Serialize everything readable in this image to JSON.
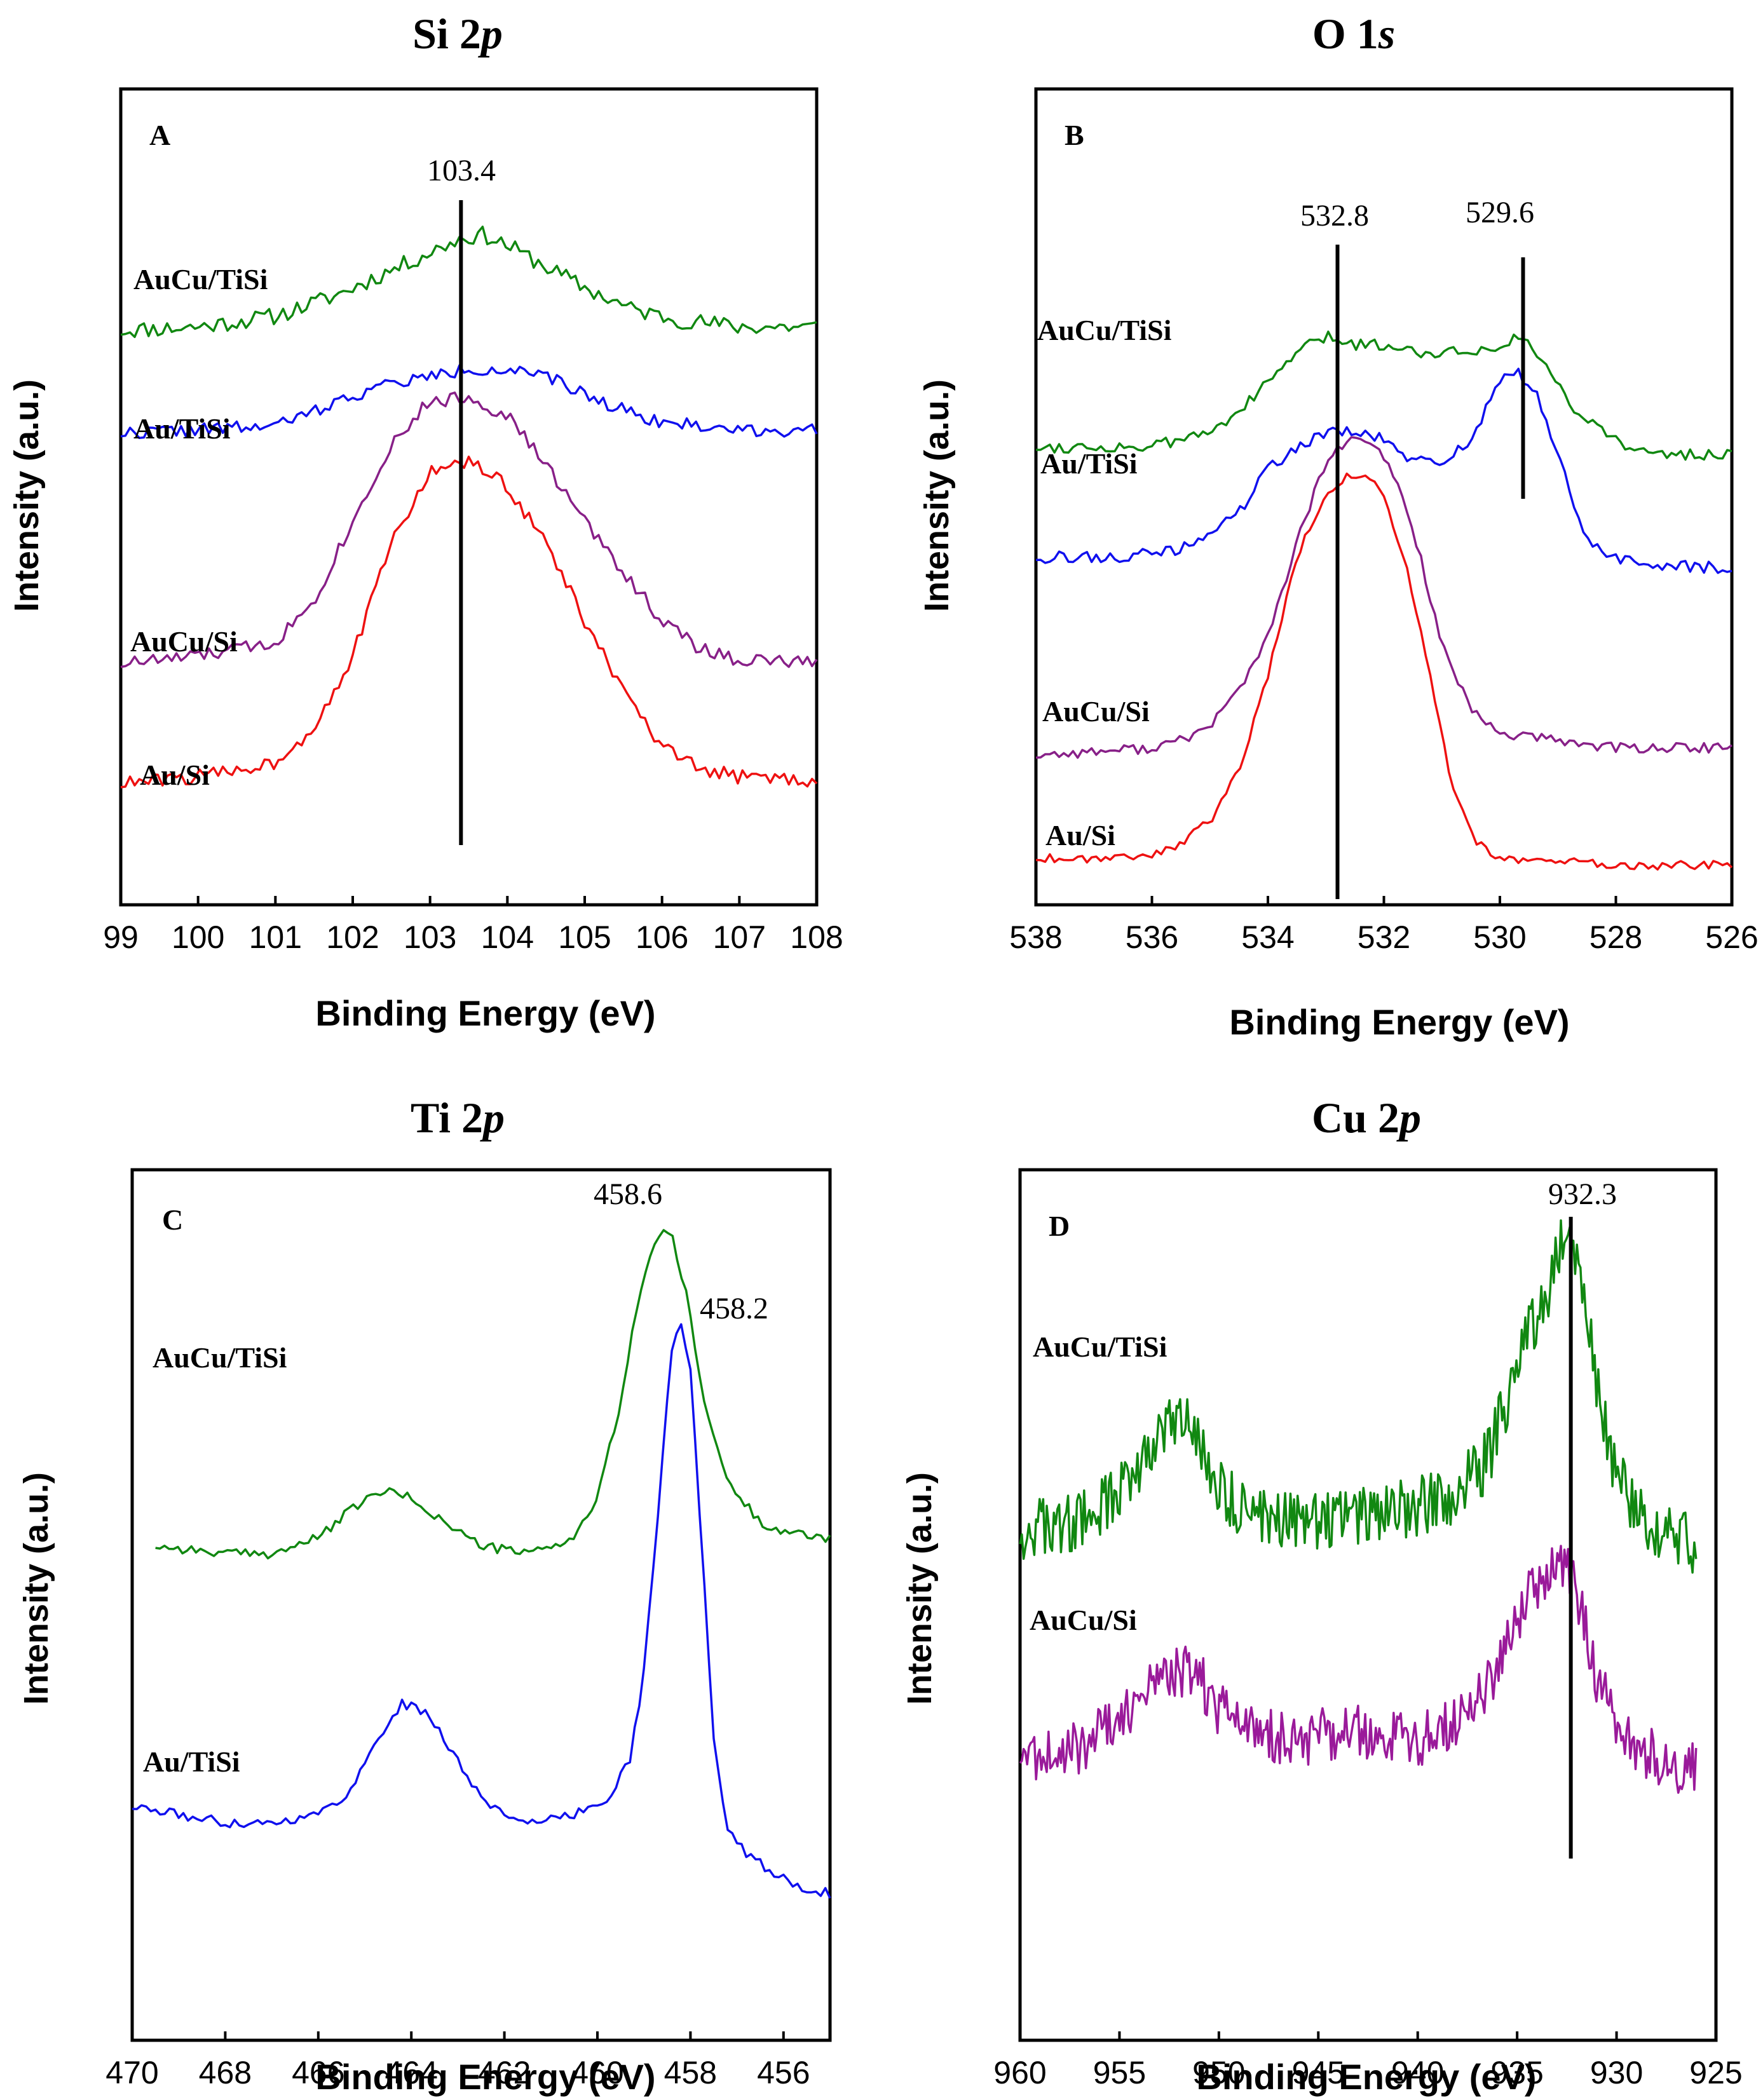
{
  "chart_data": [
    {
      "type": "line",
      "panel": "A",
      "title": "Si 2p",
      "title_main": "Si 2",
      "title_italic": "p",
      "xlabel": "Binding Energy (eV)",
      "ylabel": "Intensity (a.u.)",
      "xlim": [
        99,
        108
      ],
      "ylim": [
        0,
        1
      ],
      "xticks": [
        99,
        100,
        101,
        102,
        103,
        104,
        105,
        106,
        107,
        108
      ],
      "annotations": [
        {
          "x": 103.4,
          "label": "103.4"
        }
      ],
      "series": [
        {
          "name": "AuCu/TiSi",
          "color": "#118811",
          "noise": 0.012,
          "seed": 11,
          "x": [
            99,
            100,
            101,
            101.8,
            102.5,
            103,
            103.4,
            103.7,
            104,
            104.5,
            105,
            105.6,
            106.2,
            107,
            108
          ],
          "y": [
            0.74,
            0.745,
            0.76,
            0.79,
            0.825,
            0.85,
            0.87,
            0.875,
            0.86,
            0.83,
            0.8,
            0.77,
            0.755,
            0.745,
            0.745
          ]
        },
        {
          "name": "Au/TiSi",
          "color": "#1010ee",
          "noise": 0.009,
          "seed": 22,
          "x": [
            99,
            100,
            101,
            101.6,
            102.3,
            103,
            103.5,
            104,
            104.6,
            105.2,
            106,
            107,
            108
          ],
          "y": [
            0.595,
            0.6,
            0.605,
            0.63,
            0.66,
            0.675,
            0.685,
            0.685,
            0.67,
            0.64,
            0.61,
            0.6,
            0.598
          ]
        },
        {
          "name": "AuCu/Si",
          "color": "#882088",
          "noise": 0.01,
          "seed": 33,
          "x": [
            99,
            100,
            101,
            101.5,
            102,
            102.5,
            103,
            103.5,
            104,
            104.5,
            105,
            105.5,
            106,
            106.5,
            107,
            108
          ],
          "y": [
            0.27,
            0.28,
            0.3,
            0.36,
            0.47,
            0.58,
            0.64,
            0.645,
            0.62,
            0.55,
            0.47,
            0.4,
            0.33,
            0.29,
            0.275,
            0.27
          ]
        },
        {
          "name": "Au/Si",
          "color": "#ee1111",
          "noise": 0.01,
          "seed": 44,
          "x": [
            99,
            100,
            101,
            101.5,
            102,
            102.5,
            103,
            103.5,
            104,
            104.5,
            105,
            105.5,
            106,
            106.5,
            107,
            108
          ],
          "y": [
            0.1,
            0.11,
            0.13,
            0.18,
            0.28,
            0.44,
            0.54,
            0.555,
            0.52,
            0.44,
            0.33,
            0.23,
            0.15,
            0.12,
            0.11,
            0.105
          ]
        }
      ],
      "series_labels": [
        "AuCu/TiSi",
        "Au/TiSi",
        "AuCu/Si",
        "Au/Si"
      ]
    },
    {
      "type": "line",
      "panel": "B",
      "title": "O 1s",
      "title_main": "O 1",
      "title_italic": "s",
      "xlabel": "Binding Energy (eV)",
      "ylabel": "Intensity (a.u.)",
      "xlim": [
        538,
        526
      ],
      "ylim": [
        0,
        1
      ],
      "xticks": [
        538,
        536,
        534,
        532,
        530,
        528,
        526
      ],
      "annotations": [
        {
          "x": 532.8,
          "label": "532.8"
        },
        {
          "x": 529.6,
          "label": "529.6"
        }
      ],
      "series": [
        {
          "name": "AuCu/TiSi",
          "color": "#118811",
          "noise": 0.008,
          "seed": 55,
          "x": [
            538,
            536,
            535,
            534.2,
            533.5,
            533,
            532.5,
            532,
            531.5,
            531,
            530.5,
            530,
            529.6,
            529.2,
            528.8,
            528.2,
            527.5,
            526
          ],
          "y": [
            0.59,
            0.59,
            0.61,
            0.66,
            0.72,
            0.74,
            0.73,
            0.73,
            0.72,
            0.72,
            0.72,
            0.73,
            0.74,
            0.7,
            0.65,
            0.61,
            0.58,
            0.58
          ]
        },
        {
          "name": "Au/TiSi",
          "color": "#1010ee",
          "noise": 0.008,
          "seed": 66,
          "x": [
            538,
            536.5,
            535.5,
            534.5,
            534,
            533.5,
            533,
            532.5,
            532,
            531.5,
            531,
            530.5,
            530,
            529.7,
            529.4,
            529,
            528.6,
            528.2,
            527.5,
            526
          ],
          "y": [
            0.44,
            0.44,
            0.45,
            0.5,
            0.56,
            0.59,
            0.61,
            0.61,
            0.6,
            0.57,
            0.57,
            0.6,
            0.68,
            0.69,
            0.67,
            0.58,
            0.48,
            0.44,
            0.43,
            0.425
          ]
        },
        {
          "name": "AuCu/Si",
          "color": "#882088",
          "noise": 0.007,
          "seed": 77,
          "x": [
            538,
            537,
            536,
            535.5,
            535,
            534.5,
            534,
            533.5,
            533,
            532.6,
            532.2,
            531.8,
            531.4,
            531,
            530.5,
            530,
            529,
            528,
            526
          ],
          "y": [
            0.17,
            0.175,
            0.18,
            0.19,
            0.21,
            0.26,
            0.33,
            0.46,
            0.57,
            0.6,
            0.595,
            0.55,
            0.45,
            0.32,
            0.23,
            0.2,
            0.19,
            0.18,
            0.18
          ]
        },
        {
          "name": "Au/Si",
          "color": "#ee1111",
          "noise": 0.006,
          "seed": 88,
          "x": [
            538,
            537,
            536,
            535.5,
            535,
            534.5,
            534,
            533.5,
            533,
            532.6,
            532.3,
            532,
            531.6,
            531.2,
            530.8,
            530.4,
            530,
            529,
            528,
            526
          ],
          "y": [
            0.03,
            0.03,
            0.035,
            0.05,
            0.08,
            0.15,
            0.28,
            0.44,
            0.53,
            0.55,
            0.555,
            0.52,
            0.42,
            0.28,
            0.12,
            0.05,
            0.03,
            0.025,
            0.02,
            0.02
          ]
        }
      ],
      "series_labels": [
        "AuCu/TiSi",
        "Au/TiSi",
        "AuCu/Si",
        "Au/Si"
      ]
    },
    {
      "type": "line",
      "panel": "C",
      "title": "Ti 2p",
      "title_main": "Ti 2",
      "title_italic": "p",
      "xlabel": "Binding Energy (eV)",
      "ylabel": "Intensity (a.u.)",
      "xlim": [
        470,
        455
      ],
      "ylim": [
        0,
        1
      ],
      "xticks": [
        470,
        468,
        466,
        464,
        462,
        460,
        458,
        456
      ],
      "annotations": [
        {
          "x": 458.6,
          "label": "458.6"
        },
        {
          "x": 458.2,
          "label": "458.2"
        }
      ],
      "series": [
        {
          "name": "AuCu/TiSi",
          "color": "#118811",
          "noise": 0.006,
          "seed": 99,
          "x": [
            469.5,
            468,
            467,
            466,
            465.2,
            464.6,
            464,
            463.3,
            462.5,
            461.5,
            460.5,
            460,
            459.5,
            459.1,
            458.8,
            458.6,
            458.4,
            458.1,
            457.7,
            457.2,
            456.5,
            455.8,
            455
          ],
          "y": [
            0.54,
            0.53,
            0.53,
            0.55,
            0.59,
            0.61,
            0.6,
            0.57,
            0.54,
            0.53,
            0.55,
            0.6,
            0.72,
            0.86,
            0.92,
            0.94,
            0.93,
            0.86,
            0.72,
            0.62,
            0.57,
            0.555,
            0.55
          ]
        },
        {
          "name": "Au/TiSi",
          "color": "#1010ee",
          "noise": 0.006,
          "seed": 111,
          "x": [
            470,
            469,
            468,
            467,
            466,
            465.3,
            464.7,
            464.2,
            463.7,
            463,
            462.5,
            462,
            461.2,
            460.5,
            459.8,
            459.3,
            459,
            458.7,
            458.4,
            458.2,
            458,
            457.8,
            457.5,
            457.2,
            456.8,
            456.3,
            455.7,
            455
          ],
          "y": [
            0.21,
            0.2,
            0.19,
            0.19,
            0.2,
            0.23,
            0.3,
            0.34,
            0.33,
            0.27,
            0.22,
            0.2,
            0.19,
            0.2,
            0.22,
            0.27,
            0.38,
            0.58,
            0.79,
            0.82,
            0.76,
            0.58,
            0.3,
            0.18,
            0.15,
            0.13,
            0.11,
            0.1
          ]
        }
      ],
      "series_labels": [
        "AuCu/TiSi",
        "Au/TiSi"
      ]
    },
    {
      "type": "line",
      "panel": "D",
      "title": "Cu 2p",
      "title_main": "Cu 2",
      "title_italic": "p",
      "xlabel": "Binding Energy (eV)",
      "ylabel": "Intensity (a.u.)",
      "xlim": [
        960,
        925
      ],
      "ylim": [
        0,
        1
      ],
      "xticks": [
        960,
        955,
        950,
        945,
        940,
        935,
        930,
        925
      ],
      "annotations": [
        {
          "x": 932.3,
          "label": "932.3"
        }
      ],
      "series": [
        {
          "name": "AuCu/TiSi",
          "color": "#118811",
          "noise": 0.04,
          "seed": 123,
          "x": [
            960,
            957,
            955,
            953.5,
            952,
            951,
            950,
            948,
            946,
            944,
            942,
            940,
            938,
            936.5,
            935.5,
            934.5,
            933.5,
            932.8,
            932.3,
            931.8,
            931,
            930,
            929,
            927.5,
            926
          ],
          "y": [
            0.55,
            0.56,
            0.6,
            0.66,
            0.69,
            0.67,
            0.6,
            0.57,
            0.56,
            0.57,
            0.57,
            0.58,
            0.6,
            0.64,
            0.72,
            0.8,
            0.86,
            0.92,
            0.94,
            0.88,
            0.74,
            0.62,
            0.57,
            0.55,
            0.53
          ]
        },
        {
          "name": "AuCu/Si",
          "color": "#9a1a9a",
          "noise": 0.035,
          "seed": 321,
          "x": [
            960,
            957,
            955,
            953.5,
            952,
            951,
            950,
            948,
            946,
            944,
            942,
            940,
            938,
            936.5,
            935.5,
            934.5,
            933.5,
            932.8,
            932.3,
            931.8,
            931,
            930,
            929,
            927.5,
            926
          ],
          "y": [
            0.26,
            0.27,
            0.31,
            0.35,
            0.37,
            0.36,
            0.32,
            0.29,
            0.28,
            0.29,
            0.29,
            0.28,
            0.3,
            0.35,
            0.41,
            0.46,
            0.49,
            0.51,
            0.5,
            0.45,
            0.36,
            0.3,
            0.27,
            0.25,
            0.24
          ]
        }
      ],
      "series_labels": [
        "AuCu/TiSi",
        "AuCu/Si"
      ]
    }
  ]
}
